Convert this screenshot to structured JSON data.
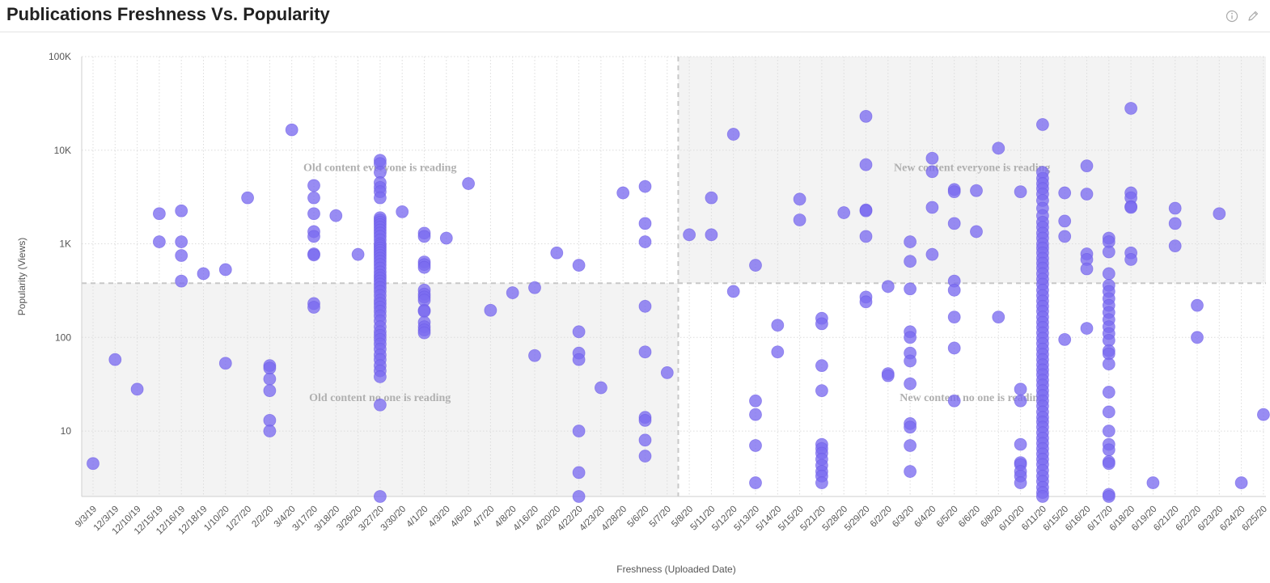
{
  "header": {
    "title": "Publications Freshness Vs. Popularity",
    "info_icon": "info-circle-icon",
    "edit_icon": "pencil-icon"
  },
  "chart_data": {
    "type": "scatter",
    "title": "Publications Freshness Vs. Popularity",
    "xlabel": "Freshness (Uploaded Date)",
    "ylabel": "Popularity (Views)",
    "y_scale": "log",
    "ylim": [
      2,
      100000
    ],
    "grid": true,
    "point_color": "#7b6cf0",
    "y_ticks": [
      {
        "value": 10,
        "label": "10"
      },
      {
        "value": 100,
        "label": "100"
      },
      {
        "value": 1000,
        "label": "1K"
      },
      {
        "value": 10000,
        "label": "10K"
      },
      {
        "value": 100000,
        "label": "100K"
      }
    ],
    "categories": [
      "9/3/19",
      "12/3/19",
      "12/10/19",
      "12/15/19",
      "12/16/19",
      "12/18/19",
      "1/10/20",
      "1/27/20",
      "2/2/20",
      "3/4/20",
      "3/17/20",
      "3/18/20",
      "3/26/20",
      "3/27/20",
      "3/30/20",
      "4/1/20",
      "4/3/20",
      "4/6/20",
      "4/7/20",
      "4/8/20",
      "4/16/20",
      "4/20/20",
      "4/22/20",
      "4/23/20",
      "4/28/20",
      "5/6/20",
      "5/7/20",
      "5/8/20",
      "5/11/20",
      "5/12/20",
      "5/13/20",
      "5/14/20",
      "5/15/20",
      "5/21/20",
      "5/28/20",
      "5/29/20",
      "6/2/20",
      "6/3/20",
      "6/4/20",
      "6/5/20",
      "6/6/20",
      "6/8/20",
      "6/10/20",
      "6/11/20",
      "6/15/20",
      "6/16/20",
      "6/17/20",
      "6/18/20",
      "6/19/20",
      "6/21/20",
      "6/22/20",
      "6/23/20",
      "6/24/20",
      "6/25/20"
    ],
    "thresholds": {
      "x_category": "5/8/20",
      "y_value": 380
    },
    "quadrants": [
      {
        "label": "Old content everyone is reading",
        "position": "top-left"
      },
      {
        "label": "New content everyone is reading",
        "position": "top-right"
      },
      {
        "label": "Old content no one is reading",
        "position": "bottom-left"
      },
      {
        "label": "New content no one is reading",
        "position": "bottom-right"
      }
    ],
    "points": [
      [
        "9/3/19",
        4.5
      ],
      [
        "12/3/19",
        58
      ],
      [
        "12/10/19",
        28
      ],
      [
        "12/15/19",
        2100
      ],
      [
        "12/15/19",
        1050
      ],
      [
        "12/16/19",
        2250
      ],
      [
        "12/16/19",
        1050
      ],
      [
        "12/16/19",
        750
      ],
      [
        "12/16/19",
        400
      ],
      [
        "12/18/19",
        480
      ],
      [
        "1/10/20",
        530
      ],
      [
        "1/10/20",
        53
      ],
      [
        "1/27/20",
        3100
      ],
      [
        "2/2/20",
        50
      ],
      [
        "2/2/20",
        47
      ],
      [
        "2/2/20",
        36
      ],
      [
        "2/2/20",
        27
      ],
      [
        "2/2/20",
        13
      ],
      [
        "2/2/20",
        10
      ],
      [
        "3/4/20",
        16500
      ],
      [
        "3/17/20",
        4200
      ],
      [
        "3/17/20",
        3100
      ],
      [
        "3/17/20",
        2100
      ],
      [
        "3/17/20",
        1350
      ],
      [
        "3/17/20",
        1200
      ],
      [
        "3/17/20",
        780
      ],
      [
        "3/17/20",
        760
      ],
      [
        "3/17/20",
        230
      ],
      [
        "3/17/20",
        210
      ],
      [
        "3/18/20",
        2000
      ],
      [
        "3/26/20",
        770
      ],
      [
        "3/27/20",
        7800
      ],
      [
        "3/27/20",
        7200
      ],
      [
        "3/27/20",
        5800
      ],
      [
        "3/27/20",
        4500
      ],
      [
        "3/27/20",
        4000
      ],
      [
        "3/27/20",
        3600
      ],
      [
        "3/27/20",
        3100
      ],
      [
        "3/27/20",
        1900
      ],
      [
        "3/27/20",
        1800
      ],
      [
        "3/27/20",
        1700
      ],
      [
        "3/27/20",
        1600
      ],
      [
        "3/27/20",
        1500
      ],
      [
        "3/27/20",
        1400
      ],
      [
        "3/27/20",
        1300
      ],
      [
        "3/27/20",
        1200
      ],
      [
        "3/27/20",
        1100
      ],
      [
        "3/27/20",
        1000
      ],
      [
        "3/27/20",
        950
      ],
      [
        "3/27/20",
        900
      ],
      [
        "3/27/20",
        850
      ],
      [
        "3/27/20",
        800
      ],
      [
        "3/27/20",
        750
      ],
      [
        "3/27/20",
        700
      ],
      [
        "3/27/20",
        650
      ],
      [
        "3/27/20",
        600
      ],
      [
        "3/27/20",
        550
      ],
      [
        "3/27/20",
        500
      ],
      [
        "3/27/20",
        460
      ],
      [
        "3/27/20",
        430
      ],
      [
        "3/27/20",
        400
      ],
      [
        "3/27/20",
        370
      ],
      [
        "3/27/20",
        340
      ],
      [
        "3/27/20",
        310
      ],
      [
        "3/27/20",
        280
      ],
      [
        "3/27/20",
        250
      ],
      [
        "3/27/20",
        230
      ],
      [
        "3/27/20",
        210
      ],
      [
        "3/27/20",
        190
      ],
      [
        "3/27/20",
        170
      ],
      [
        "3/27/20",
        150
      ],
      [
        "3/27/20",
        130
      ],
      [
        "3/27/20",
        115
      ],
      [
        "3/27/20",
        105
      ],
      [
        "3/27/20",
        95
      ],
      [
        "3/27/20",
        85
      ],
      [
        "3/27/20",
        75
      ],
      [
        "3/27/20",
        65
      ],
      [
        "3/27/20",
        58
      ],
      [
        "3/27/20",
        50
      ],
      [
        "3/27/20",
        44
      ],
      [
        "3/27/20",
        38
      ],
      [
        "3/27/20",
        19
      ],
      [
        "3/27/20",
        2
      ],
      [
        "3/30/20",
        2200
      ],
      [
        "4/1/20",
        1300
      ],
      [
        "4/1/20",
        1200
      ],
      [
        "4/1/20",
        640
      ],
      [
        "4/1/20",
        600
      ],
      [
        "4/1/20",
        560
      ],
      [
        "4/1/20",
        320
      ],
      [
        "4/1/20",
        290
      ],
      [
        "4/1/20",
        270
      ],
      [
        "4/1/20",
        250
      ],
      [
        "4/1/20",
        195
      ],
      [
        "4/1/20",
        190
      ],
      [
        "4/1/20",
        145
      ],
      [
        "4/1/20",
        130
      ],
      [
        "4/1/20",
        120
      ],
      [
        "4/1/20",
        112
      ],
      [
        "4/3/20",
        1150
      ],
      [
        "4/6/20",
        4400
      ],
      [
        "4/7/20",
        195
      ],
      [
        "4/8/20",
        300
      ],
      [
        "4/16/20",
        340
      ],
      [
        "4/16/20",
        64
      ],
      [
        "4/20/20",
        800
      ],
      [
        "4/22/20",
        590
      ],
      [
        "4/22/20",
        115
      ],
      [
        "4/22/20",
        68
      ],
      [
        "4/22/20",
        58
      ],
      [
        "4/22/20",
        10
      ],
      [
        "4/22/20",
        3.6
      ],
      [
        "4/22/20",
        2
      ],
      [
        "4/23/20",
        29
      ],
      [
        "4/28/20",
        3500
      ],
      [
        "5/6/20",
        4100
      ],
      [
        "5/6/20",
        1650
      ],
      [
        "5/6/20",
        1050
      ],
      [
        "5/6/20",
        215
      ],
      [
        "5/6/20",
        70
      ],
      [
        "5/6/20",
        14
      ],
      [
        "5/6/20",
        13
      ],
      [
        "5/6/20",
        8
      ],
      [
        "5/6/20",
        5.4
      ],
      [
        "5/7/20",
        42
      ],
      [
        "5/8/20",
        1250
      ],
      [
        "5/11/20",
        3100
      ],
      [
        "5/11/20",
        1250
      ],
      [
        "5/12/20",
        14800
      ],
      [
        "5/12/20",
        310
      ],
      [
        "5/13/20",
        590
      ],
      [
        "5/13/20",
        21
      ],
      [
        "5/13/20",
        15
      ],
      [
        "5/13/20",
        7
      ],
      [
        "5/13/20",
        2.8
      ],
      [
        "5/14/20",
        135
      ],
      [
        "5/14/20",
        70
      ],
      [
        "5/15/20",
        3000
      ],
      [
        "5/15/20",
        1800
      ],
      [
        "5/21/20",
        160
      ],
      [
        "5/21/20",
        140
      ],
      [
        "5/21/20",
        50
      ],
      [
        "5/21/20",
        27
      ],
      [
        "5/21/20",
        7.2
      ],
      [
        "5/21/20",
        6.5
      ],
      [
        "5/21/20",
        5.8
      ],
      [
        "5/21/20",
        5
      ],
      [
        "5/21/20",
        4.3
      ],
      [
        "5/21/20",
        3.7
      ],
      [
        "5/21/20",
        3.3
      ],
      [
        "5/21/20",
        2.8
      ],
      [
        "5/28/20",
        2150
      ],
      [
        "5/29/20",
        23000
      ],
      [
        "5/29/20",
        7000
      ],
      [
        "5/29/20",
        2300
      ],
      [
        "5/29/20",
        2250
      ],
      [
        "5/29/20",
        1200
      ],
      [
        "5/29/20",
        270
      ],
      [
        "5/29/20",
        240
      ],
      [
        "6/2/20",
        350
      ],
      [
        "6/2/20",
        41
      ],
      [
        "6/2/20",
        39
      ],
      [
        "6/3/20",
        1050
      ],
      [
        "6/3/20",
        650
      ],
      [
        "6/3/20",
        330
      ],
      [
        "6/3/20",
        115
      ],
      [
        "6/3/20",
        100
      ],
      [
        "6/3/20",
        68
      ],
      [
        "6/3/20",
        56
      ],
      [
        "6/3/20",
        32
      ],
      [
        "6/3/20",
        12
      ],
      [
        "6/3/20",
        11
      ],
      [
        "6/3/20",
        7
      ],
      [
        "6/3/20",
        3.7
      ],
      [
        "6/4/20",
        8200
      ],
      [
        "6/4/20",
        5900
      ],
      [
        "6/4/20",
        2450
      ],
      [
        "6/4/20",
        770
      ],
      [
        "6/5/20",
        3800
      ],
      [
        "6/5/20",
        3600
      ],
      [
        "6/5/20",
        1650
      ],
      [
        "6/5/20",
        400
      ],
      [
        "6/5/20",
        320
      ],
      [
        "6/5/20",
        165
      ],
      [
        "6/5/20",
        77
      ],
      [
        "6/5/20",
        21
      ],
      [
        "6/6/20",
        3700
      ],
      [
        "6/6/20",
        1350
      ],
      [
        "6/8/20",
        10500
      ],
      [
        "6/8/20",
        165
      ],
      [
        "6/10/20",
        3600
      ],
      [
        "6/10/20",
        28
      ],
      [
        "6/10/20",
        21
      ],
      [
        "6/10/20",
        7.2
      ],
      [
        "6/10/20",
        4.6
      ],
      [
        "6/10/20",
        4.4
      ],
      [
        "6/10/20",
        3.7
      ],
      [
        "6/10/20",
        3.3
      ],
      [
        "6/10/20",
        2.8
      ],
      [
        "6/11/20",
        18800
      ],
      [
        "6/11/20",
        5800
      ],
      [
        "6/11/20",
        5000
      ],
      [
        "6/11/20",
        4400
      ],
      [
        "6/11/20",
        3900
      ],
      [
        "6/11/20",
        3400
      ],
      [
        "6/11/20",
        2900
      ],
      [
        "6/11/20",
        2400
      ],
      [
        "6/11/20",
        2000
      ],
      [
        "6/11/20",
        1700
      ],
      [
        "6/11/20",
        1500
      ],
      [
        "6/11/20",
        1300
      ],
      [
        "6/11/20",
        1150
      ],
      [
        "6/11/20",
        1000
      ],
      [
        "6/11/20",
        900
      ],
      [
        "6/11/20",
        800
      ],
      [
        "6/11/20",
        700
      ],
      [
        "6/11/20",
        620
      ],
      [
        "6/11/20",
        550
      ],
      [
        "6/11/20",
        480
      ],
      [
        "6/11/20",
        420
      ],
      [
        "6/11/20",
        370
      ],
      [
        "6/11/20",
        320
      ],
      [
        "6/11/20",
        280
      ],
      [
        "6/11/20",
        245
      ],
      [
        "6/11/20",
        215
      ],
      [
        "6/11/20",
        190
      ],
      [
        "6/11/20",
        165
      ],
      [
        "6/11/20",
        145
      ],
      [
        "6/11/20",
        128
      ],
      [
        "6/11/20",
        112
      ],
      [
        "6/11/20",
        98
      ],
      [
        "6/11/20",
        86
      ],
      [
        "6/11/20",
        75
      ],
      [
        "6/11/20",
        66
      ],
      [
        "6/11/20",
        58
      ],
      [
        "6/11/20",
        51
      ],
      [
        "6/11/20",
        45
      ],
      [
        "6/11/20",
        40
      ],
      [
        "6/11/20",
        35
      ],
      [
        "6/11/20",
        31
      ],
      [
        "6/11/20",
        27
      ],
      [
        "6/11/20",
        24
      ],
      [
        "6/11/20",
        21
      ],
      [
        "6/11/20",
        18.5
      ],
      [
        "6/11/20",
        16
      ],
      [
        "6/11/20",
        14
      ],
      [
        "6/11/20",
        12.5
      ],
      [
        "6/11/20",
        11
      ],
      [
        "6/11/20",
        9.6
      ],
      [
        "6/11/20",
        8.4
      ],
      [
        "6/11/20",
        7.4
      ],
      [
        "6/11/20",
        6.5
      ],
      [
        "6/11/20",
        5.7
      ],
      [
        "6/11/20",
        5
      ],
      [
        "6/11/20",
        4.4
      ],
      [
        "6/11/20",
        3.8
      ],
      [
        "6/11/20",
        3.3
      ],
      [
        "6/11/20",
        2.9
      ],
      [
        "6/11/20",
        2.5
      ],
      [
        "6/11/20",
        2.2
      ],
      [
        "6/11/20",
        2
      ],
      [
        "6/15/20",
        3500
      ],
      [
        "6/15/20",
        1750
      ],
      [
        "6/15/20",
        1200
      ],
      [
        "6/15/20",
        95
      ],
      [
        "6/16/20",
        6800
      ],
      [
        "6/16/20",
        3400
      ],
      [
        "6/16/20",
        780
      ],
      [
        "6/16/20",
        680
      ],
      [
        "6/16/20",
        540
      ],
      [
        "6/16/20",
        125
      ],
      [
        "6/17/20",
        1150
      ],
      [
        "6/17/20",
        1050
      ],
      [
        "6/17/20",
        820
      ],
      [
        "6/17/20",
        480
      ],
      [
        "6/17/20",
        360
      ],
      [
        "6/17/20",
        310
      ],
      [
        "6/17/20",
        260
      ],
      [
        "6/17/20",
        220
      ],
      [
        "6/17/20",
        185
      ],
      [
        "6/17/20",
        155
      ],
      [
        "6/17/20",
        130
      ],
      [
        "6/17/20",
        110
      ],
      [
        "6/17/20",
        93
      ],
      [
        "6/17/20",
        72
      ],
      [
        "6/17/20",
        67
      ],
      [
        "6/17/20",
        52
      ],
      [
        "6/17/20",
        26
      ],
      [
        "6/17/20",
        16
      ],
      [
        "6/17/20",
        10
      ],
      [
        "6/17/20",
        7.2
      ],
      [
        "6/17/20",
        6.3
      ],
      [
        "6/17/20",
        4.7
      ],
      [
        "6/17/20",
        4.5
      ],
      [
        "6/17/20",
        2.1
      ],
      [
        "6/17/20",
        2
      ],
      [
        "6/18/20",
        28000
      ],
      [
        "6/18/20",
        3500
      ],
      [
        "6/18/20",
        3100
      ],
      [
        "6/18/20",
        2500
      ],
      [
        "6/18/20",
        2450
      ],
      [
        "6/18/20",
        800
      ],
      [
        "6/18/20",
        680
      ],
      [
        "6/19/20",
        2.8
      ],
      [
        "6/21/20",
        2400
      ],
      [
        "6/21/20",
        1650
      ],
      [
        "6/21/20",
        950
      ],
      [
        "6/22/20",
        220
      ],
      [
        "6/22/20",
        100
      ],
      [
        "6/23/20",
        2100
      ],
      [
        "6/24/20",
        2.8
      ],
      [
        "6/25/20",
        15
      ]
    ]
  }
}
